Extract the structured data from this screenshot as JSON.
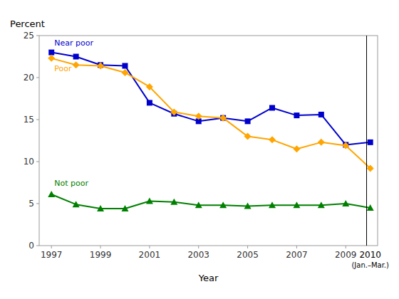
{
  "chart_data": {
    "type": "line",
    "y_label": "Percent",
    "x_label": "Year",
    "x": [
      1997,
      1998,
      1999,
      2000,
      2001,
      2002,
      2003,
      2004,
      2005,
      2006,
      2007,
      2008,
      2009,
      2010
    ],
    "series": [
      {
        "name": "Near poor",
        "color": "#0000CC",
        "marker": "square",
        "values": [
          23.0,
          22.5,
          21.5,
          21.4,
          17.0,
          15.7,
          14.8,
          15.2,
          14.8,
          16.4,
          15.5,
          15.6,
          12.0,
          12.3
        ]
      },
      {
        "name": "Poor",
        "color": "#FFA500",
        "marker": "diamond",
        "values": [
          22.3,
          21.5,
          21.4,
          20.6,
          18.9,
          15.9,
          15.4,
          15.2,
          13.0,
          12.6,
          11.5,
          12.3,
          11.9,
          9.2
        ]
      },
      {
        "name": "Not poor",
        "color": "#008000",
        "marker": "triangle",
        "values": [
          6.1,
          4.9,
          4.4,
          4.4,
          5.3,
          5.2,
          4.8,
          4.8,
          4.7,
          4.8,
          4.8,
          4.8,
          5.0,
          4.5
        ]
      }
    ],
    "xlim": [
      1996.5,
      2010.3
    ],
    "xticks": [
      1997,
      1999,
      2001,
      2003,
      2005,
      2007,
      2009
    ],
    "ylim": [
      0,
      25
    ],
    "yticks": [
      0,
      5,
      10,
      15,
      20,
      25
    ],
    "grid": false,
    "divider_x": 2009.85,
    "annotations": [
      "2010",
      "(Jan.–Mar.)"
    ]
  }
}
